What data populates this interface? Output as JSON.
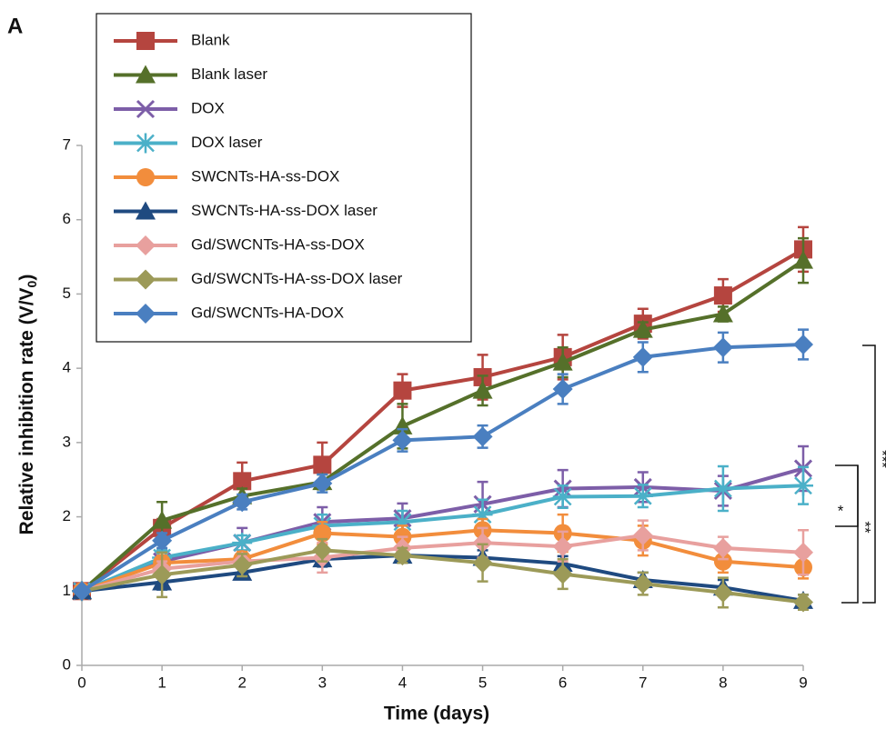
{
  "chart_data": {
    "type": "line",
    "panel_label": "A",
    "x_label": "Time (days)",
    "y_label": [
      "Relative inhibition rate (V/V",
      "0",
      ")"
    ],
    "x": [
      0,
      1,
      2,
      3,
      4,
      5,
      6,
      7,
      8,
      9
    ],
    "xlim": [
      0,
      9
    ],
    "xticks": [
      0,
      1,
      2,
      3,
      4,
      5,
      6,
      7,
      8,
      9
    ],
    "ylim": [
      0,
      7
    ],
    "yticks": [
      0,
      1,
      2,
      3,
      4,
      5,
      6,
      7
    ],
    "annotations": [
      "*",
      "**",
      "***"
    ],
    "series": [
      {
        "name": "Blank",
        "color": "#b5453f",
        "marker": "square",
        "values": [
          1,
          1.85,
          2.48,
          2.7,
          3.7,
          3.88,
          4.15,
          4.6,
          4.98,
          5.6
        ],
        "errors": [
          0,
          0.12,
          0.25,
          0.3,
          0.22,
          0.3,
          0.3,
          0.2,
          0.22,
          0.3
        ]
      },
      {
        "name": "Blank laser",
        "color": "#55702a",
        "marker": "triangle",
        "values": [
          1,
          1.95,
          2.28,
          2.47,
          3.22,
          3.7,
          4.08,
          4.52,
          4.73,
          5.45
        ],
        "errors": [
          0,
          0.25,
          0.1,
          0.1,
          0.3,
          0.2,
          0.2,
          0.1,
          0.1,
          0.3
        ]
      },
      {
        "name": "DOX",
        "color": "#7d5ea8",
        "marker": "x",
        "values": [
          1,
          1.4,
          1.65,
          1.93,
          1.98,
          2.17,
          2.38,
          2.4,
          2.35,
          2.65
        ],
        "errors": [
          0,
          0.15,
          0.2,
          0.2,
          0.2,
          0.3,
          0.25,
          0.2,
          0.2,
          0.3
        ]
      },
      {
        "name": "DOX laser",
        "color": "#4bb0c8",
        "marker": "asterisk",
        "values": [
          1,
          1.45,
          1.65,
          1.88,
          1.93,
          2.03,
          2.27,
          2.28,
          2.38,
          2.42
        ],
        "errors": [
          0,
          0.1,
          0.1,
          0.15,
          0.15,
          0.2,
          0.15,
          0.15,
          0.3,
          0.25
        ]
      },
      {
        "name": "SWCNTs-HA-ss-DOX",
        "color": "#f28d3c",
        "marker": "circle",
        "values": [
          1,
          1.38,
          1.43,
          1.78,
          1.73,
          1.82,
          1.78,
          1.68,
          1.4,
          1.32
        ],
        "errors": [
          0,
          0.1,
          0.1,
          0.15,
          0.15,
          0.15,
          0.25,
          0.2,
          0.15,
          0.15
        ]
      },
      {
        "name": "SWCNTs-HA-ss-DOX laser",
        "color": "#1f4a80",
        "marker": "triangle",
        "values": [
          1,
          1.12,
          1.25,
          1.43,
          1.48,
          1.45,
          1.37,
          1.15,
          1.05,
          0.87
        ],
        "errors": [
          0,
          0.1,
          0.08,
          0.1,
          0.1,
          0.1,
          0.1,
          0.1,
          0.1,
          0.08
        ]
      },
      {
        "name": "Gd/SWCNTs-HA-ss-DOX",
        "color": "#e8a09e",
        "marker": "diamond",
        "values": [
          1,
          1.3,
          1.4,
          1.45,
          1.58,
          1.65,
          1.6,
          1.75,
          1.58,
          1.52
        ],
        "errors": [
          0,
          0.1,
          0.1,
          0.2,
          0.15,
          0.2,
          0.2,
          0.2,
          0.15,
          0.3
        ]
      },
      {
        "name": "Gd/SWCNTs-HA-ss-DOX laser",
        "color": "#9c9a58",
        "marker": "diamond",
        "values": [
          1,
          1.22,
          1.35,
          1.55,
          1.48,
          1.38,
          1.23,
          1.1,
          0.98,
          0.85
        ],
        "errors": [
          0,
          0.3,
          0.15,
          0.15,
          0.1,
          0.25,
          0.2,
          0.15,
          0.2,
          0.1
        ]
      },
      {
        "name": "Gd/SWCNTs-HA-DOX",
        "color": "#4a7fc0",
        "marker": "diamond",
        "values": [
          1,
          1.68,
          2.2,
          2.45,
          3.03,
          3.08,
          3.72,
          4.15,
          4.28,
          4.32
        ],
        "errors": [
          0,
          0.1,
          0.1,
          0.12,
          0.15,
          0.15,
          0.2,
          0.2,
          0.2,
          0.2
        ]
      }
    ]
  }
}
